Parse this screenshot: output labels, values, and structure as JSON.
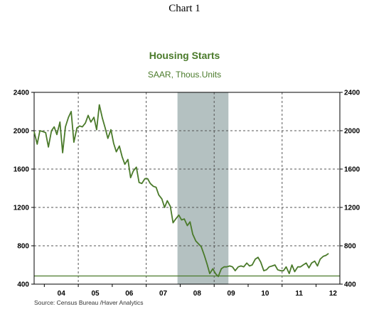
{
  "page": {
    "label": "Chart 1"
  },
  "colors": {
    "line": "#4a7a2a",
    "title": "#4a7a2a",
    "recession": "#b4c1c1",
    "baseline": "#4a7a2a",
    "grid": "#555555"
  },
  "chart_data": {
    "type": "line",
    "title": "Housing Starts",
    "subtitle": "SAAR, Thous.Units",
    "source": "Source:  Census Bureau /Haver Analytics",
    "x_tick_labels": [
      "04",
      "05",
      "06",
      "07",
      "08",
      "09",
      "10",
      "11",
      "12"
    ],
    "x_range": [
      2003.7,
      2012.7
    ],
    "ylim": [
      400,
      2400
    ],
    "y_ticks": [
      400,
      800,
      1200,
      1600,
      2000,
      2400
    ],
    "y_tick_labels": [
      "400",
      "800",
      "1200",
      "1600",
      "2000",
      "2400"
    ],
    "grid": true,
    "recession": {
      "start": 2007.92,
      "end": 2009.42
    },
    "reference_line": 485,
    "series": [
      {
        "x": [
          2003.7,
          2003.79,
          2003.87,
          2003.96,
          2004.04,
          2004.12,
          2004.21,
          2004.29,
          2004.37,
          2004.46,
          2004.54,
          2004.62,
          2004.71,
          2004.79,
          2004.87,
          2004.96,
          2005.04,
          2005.12,
          2005.21,
          2005.29,
          2005.37,
          2005.46,
          2005.54,
          2005.62,
          2005.71,
          2005.79,
          2005.87,
          2005.96,
          2006.04,
          2006.12,
          2006.21,
          2006.29,
          2006.37,
          2006.46,
          2006.54,
          2006.62,
          2006.71,
          2006.79,
          2006.87,
          2006.96,
          2007.04,
          2007.12,
          2007.21,
          2007.29,
          2007.37,
          2007.46,
          2007.54,
          2007.62,
          2007.71,
          2007.79,
          2007.87,
          2007.96,
          2008.04,
          2008.12,
          2008.21,
          2008.29,
          2008.37,
          2008.46,
          2008.54,
          2008.62,
          2008.71,
          2008.79,
          2008.87,
          2008.96,
          2009.04,
          2009.12,
          2009.21,
          2009.29,
          2009.37,
          2009.46,
          2009.54,
          2009.62,
          2009.71,
          2009.79,
          2009.87,
          2009.96,
          2010.04,
          2010.12,
          2010.21,
          2010.29,
          2010.37,
          2010.46,
          2010.54,
          2010.62,
          2010.71,
          2010.79,
          2010.87,
          2010.96,
          2011.04,
          2011.12,
          2011.21,
          2011.29,
          2011.37,
          2011.46,
          2011.54,
          2011.62,
          2011.71,
          2011.79,
          2011.87,
          2011.96,
          2012.04,
          2012.12,
          2012.21,
          2012.29,
          2012.37
        ],
        "y": [
          1990,
          1860,
          2000,
          1990,
          1980,
          1830,
          2000,
          2040,
          1960,
          2090,
          1770,
          2040,
          2140,
          2200,
          1880,
          2030,
          2050,
          2040,
          2080,
          2160,
          2090,
          2140,
          2010,
          2270,
          2130,
          2030,
          1920,
          2010,
          1870,
          1780,
          1840,
          1730,
          1650,
          1700,
          1510,
          1580,
          1620,
          1460,
          1450,
          1500,
          1500,
          1450,
          1420,
          1410,
          1330,
          1290,
          1200,
          1270,
          1210,
          1040,
          1080,
          1120,
          1070,
          1080,
          1010,
          1050,
          920,
          850,
          820,
          790,
          700,
          610,
          510,
          560,
          510,
          480,
          560,
          580,
          580,
          590,
          580,
          540,
          580,
          590,
          580,
          620,
          590,
          600,
          660,
          680,
          630,
          540,
          550,
          580,
          590,
          600,
          550,
          540,
          540,
          580,
          510,
          600,
          530,
          580,
          580,
          600,
          620,
          570,
          620,
          640,
          590,
          660,
          690,
          700,
          720
        ]
      }
    ]
  }
}
